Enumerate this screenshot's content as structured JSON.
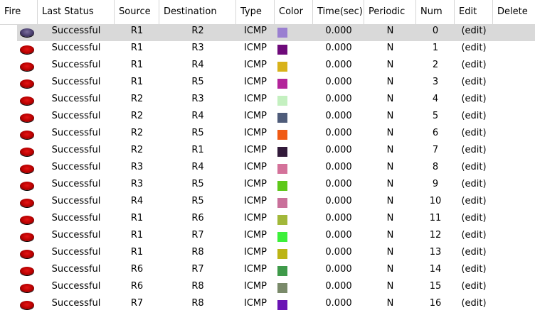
{
  "headers": {
    "fire": "Fire",
    "last_status": "Last Status",
    "source": "Source",
    "destination": "Destination",
    "type": "Type",
    "color": "Color",
    "time": "Time(sec)",
    "periodic": "Periodic",
    "num": "Num",
    "edit": "Edit",
    "delete": "Delete"
  },
  "selected_row": 0,
  "rows": [
    {
      "status": "Successful",
      "source": "R1",
      "destination": "R2",
      "type": "ICMP",
      "color": "#9a7fd1",
      "time": "0.000",
      "periodic": "N",
      "num": "0",
      "edit": "(edit)"
    },
    {
      "status": "Successful",
      "source": "R1",
      "destination": "R3",
      "type": "ICMP",
      "color": "#6e0a7a",
      "time": "0.000",
      "periodic": "N",
      "num": "1",
      "edit": "(edit)"
    },
    {
      "status": "Successful",
      "source": "R1",
      "destination": "R4",
      "type": "ICMP",
      "color": "#d8b21a",
      "time": "0.000",
      "periodic": "N",
      "num": "2",
      "edit": "(edit)"
    },
    {
      "status": "Successful",
      "source": "R1",
      "destination": "R5",
      "type": "ICMP",
      "color": "#b3249a",
      "time": "0.000",
      "periodic": "N",
      "num": "3",
      "edit": "(edit)"
    },
    {
      "status": "Successful",
      "source": "R2",
      "destination": "R3",
      "type": "ICMP",
      "color": "#c4f0c0",
      "time": "0.000",
      "periodic": "N",
      "num": "4",
      "edit": "(edit)"
    },
    {
      "status": "Successful",
      "source": "R2",
      "destination": "R4",
      "type": "ICMP",
      "color": "#4f5c7a",
      "time": "0.000",
      "periodic": "N",
      "num": "5",
      "edit": "(edit)"
    },
    {
      "status": "Successful",
      "source": "R2",
      "destination": "R5",
      "type": "ICMP",
      "color": "#f05a14",
      "time": "0.000",
      "periodic": "N",
      "num": "6",
      "edit": "(edit)"
    },
    {
      "status": "Successful",
      "source": "R2",
      "destination": "R1",
      "type": "ICMP",
      "color": "#321a3a",
      "time": "0.000",
      "periodic": "N",
      "num": "7",
      "edit": "(edit)"
    },
    {
      "status": "Successful",
      "source": "R3",
      "destination": "R4",
      "type": "ICMP",
      "color": "#d4729a",
      "time": "0.000",
      "periodic": "N",
      "num": "8",
      "edit": "(edit)"
    },
    {
      "status": "Successful",
      "source": "R3",
      "destination": "R5",
      "type": "ICMP",
      "color": "#5ec81a",
      "time": "0.000",
      "periodic": "N",
      "num": "9",
      "edit": "(edit)"
    },
    {
      "status": "Successful",
      "source": "R4",
      "destination": "R5",
      "type": "ICMP",
      "color": "#c9709a",
      "time": "0.000",
      "periodic": "N",
      "num": "10",
      "edit": "(edit)"
    },
    {
      "status": "Successful",
      "source": "R1",
      "destination": "R6",
      "type": "ICMP",
      "color": "#a2b83a",
      "time": "0.000",
      "periodic": "N",
      "num": "11",
      "edit": "(edit)"
    },
    {
      "status": "Successful",
      "source": "R1",
      "destination": "R7",
      "type": "ICMP",
      "color": "#3cf03a",
      "time": "0.000",
      "periodic": "N",
      "num": "12",
      "edit": "(edit)"
    },
    {
      "status": "Successful",
      "source": "R1",
      "destination": "R8",
      "type": "ICMP",
      "color": "#bcb414",
      "time": "0.000",
      "periodic": "N",
      "num": "13",
      "edit": "(edit)"
    },
    {
      "status": "Successful",
      "source": "R6",
      "destination": "R7",
      "type": "ICMP",
      "color": "#3f9a4a",
      "time": "0.000",
      "periodic": "N",
      "num": "14",
      "edit": "(edit)"
    },
    {
      "status": "Successful",
      "source": "R6",
      "destination": "R8",
      "type": "ICMP",
      "color": "#7a8a6a",
      "time": "0.000",
      "periodic": "N",
      "num": "15",
      "edit": "(edit)"
    },
    {
      "status": "Successful",
      "source": "R7",
      "destination": "R8",
      "type": "ICMP",
      "color": "#6a14b4",
      "time": "0.000",
      "periodic": "N",
      "num": "16",
      "edit": "(edit)"
    }
  ]
}
